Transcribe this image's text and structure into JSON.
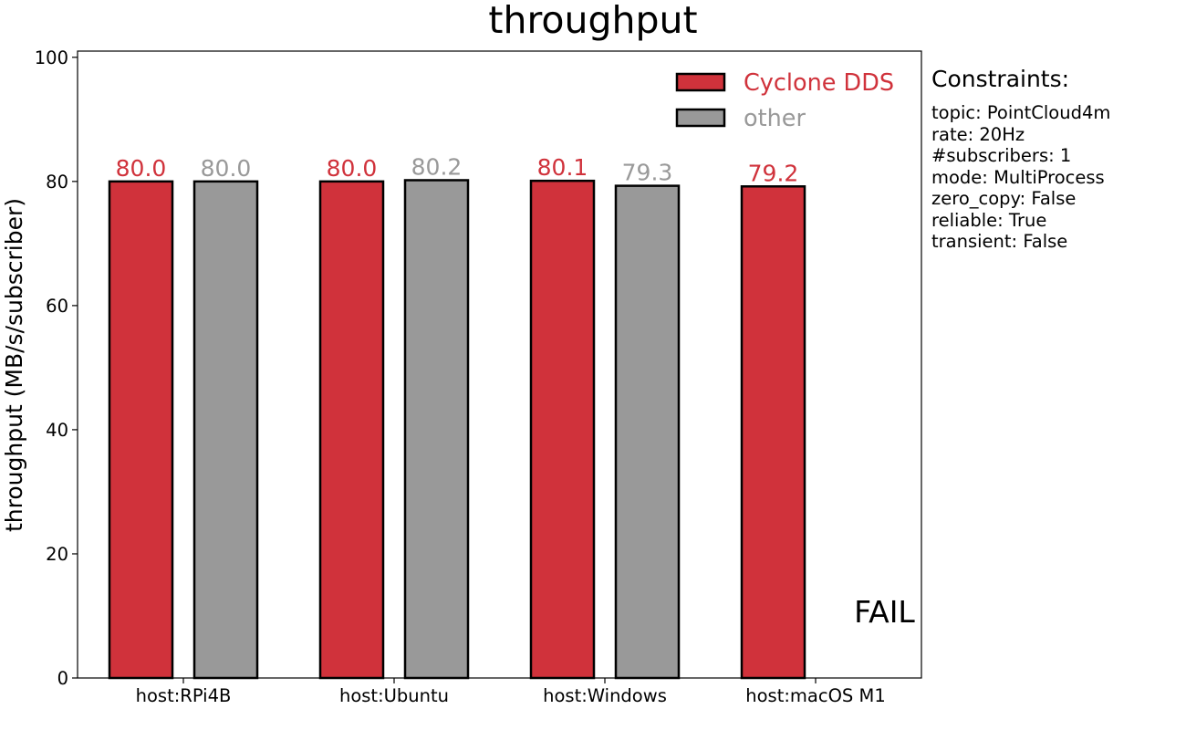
{
  "chart_data": {
    "type": "bar",
    "title": "throughput",
    "ylabel": "throughput (MB/s/subscriber)",
    "xlabel": "",
    "ylim": [
      0,
      101
    ],
    "yticks": [
      0,
      20,
      40,
      60,
      80,
      100
    ],
    "grid": false,
    "legend_position": "top-right",
    "categories": [
      "host:RPi4B",
      "host:Ubuntu",
      "host:Windows",
      "host:macOS M1"
    ],
    "series": [
      {
        "name": "Cyclone DDS",
        "color": "#d0323b",
        "values": [
          80.0,
          80.0,
          80.1,
          79.2
        ],
        "labels": [
          "80.0",
          "80.0",
          "80.1",
          "79.2"
        ]
      },
      {
        "name": "other",
        "color": "#999999",
        "values": [
          80.0,
          80.2,
          79.3,
          null
        ],
        "labels": [
          "80.0",
          "80.2",
          "79.3",
          null
        ]
      }
    ],
    "annotations": [
      {
        "text": "FAIL",
        "category": "host:macOS M1",
        "series": "other"
      }
    ]
  },
  "constraints": {
    "title": "Constraints:",
    "lines": [
      "topic: PointCloud4m",
      "rate: 20Hz",
      "#subscribers: 1",
      "mode: MultiProcess",
      "zero_copy: False",
      "reliable: True",
      "transient: False"
    ]
  }
}
